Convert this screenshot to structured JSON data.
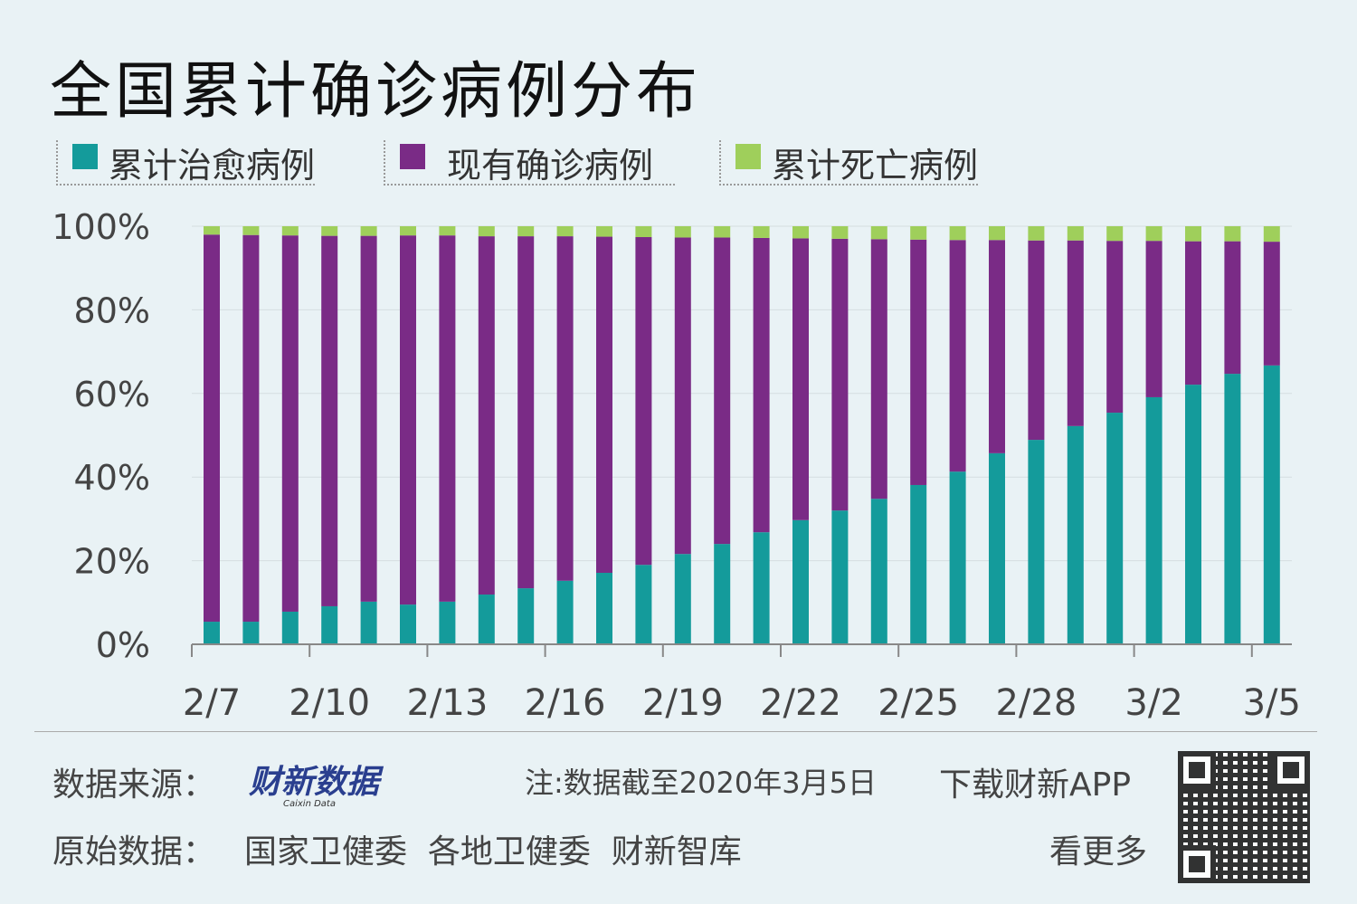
{
  "chart_data": {
    "type": "bar",
    "stacked": true,
    "normalized": true,
    "title": "全国累计确诊病例分布",
    "categories": [
      "2/7",
      "2/8",
      "2/9",
      "2/10",
      "2/11",
      "2/12",
      "2/13",
      "2/14",
      "2/15",
      "2/16",
      "2/17",
      "2/18",
      "2/19",
      "2/20",
      "2/21",
      "2/22",
      "2/23",
      "2/24",
      "2/25",
      "2/26",
      "2/27",
      "2/28",
      "2/29",
      "3/1",
      "3/2",
      "3/3",
      "3/4",
      "3/5"
    ],
    "tick_labels": [
      "2/7",
      "2/10",
      "2/13",
      "2/16",
      "2/19",
      "2/22",
      "2/25",
      "2/28",
      "3/2",
      "3/5"
    ],
    "y_ticks": [
      "0%",
      "20%",
      "40%",
      "60%",
      "80%",
      "100%"
    ],
    "ylim": [
      0,
      100
    ],
    "grid": true,
    "legend_position": "top-left",
    "series": [
      {
        "name": "累计治愈病例",
        "color": "#149b9b",
        "values": [
          5.4,
          5.4,
          7.8,
          9.1,
          10.2,
          9.5,
          10.2,
          11.9,
          13.4,
          15.2,
          17.1,
          19.0,
          21.6,
          24.0,
          26.8,
          29.7,
          32.0,
          34.8,
          38.1,
          41.3,
          45.7,
          48.9,
          52.2,
          55.4,
          59.1,
          62.1,
          64.7,
          66.7
        ]
      },
      {
        "name": "现有确诊病例",
        "color": "#7a2b86",
        "values": [
          92.6,
          92.5,
          90.0,
          88.6,
          87.5,
          88.3,
          87.6,
          85.7,
          84.2,
          82.4,
          80.4,
          78.4,
          75.7,
          73.3,
          70.4,
          67.4,
          65.0,
          62.1,
          58.7,
          55.4,
          51.0,
          47.7,
          44.4,
          41.1,
          37.4,
          34.3,
          31.7,
          29.6
        ]
      },
      {
        "name": "累计死亡病例",
        "color": "#9fcf5b",
        "values": [
          2.0,
          2.1,
          2.2,
          2.3,
          2.3,
          2.2,
          2.2,
          2.4,
          2.4,
          2.4,
          2.5,
          2.6,
          2.7,
          2.7,
          2.8,
          2.9,
          3.0,
          3.1,
          3.2,
          3.3,
          3.3,
          3.4,
          3.4,
          3.5,
          3.5,
          3.6,
          3.6,
          3.7
        ]
      }
    ]
  },
  "footer": {
    "source_label": "数据来源：",
    "source_logo": "财新数据",
    "source_logo_sub": "Caixin Data",
    "note": "注:数据截至2020年3月5日",
    "download": "下载财新APP",
    "more": "看更多",
    "raw_label": "原始数据：",
    "raw_sources": "国家卫健委  各地卫健委  财新智库"
  }
}
